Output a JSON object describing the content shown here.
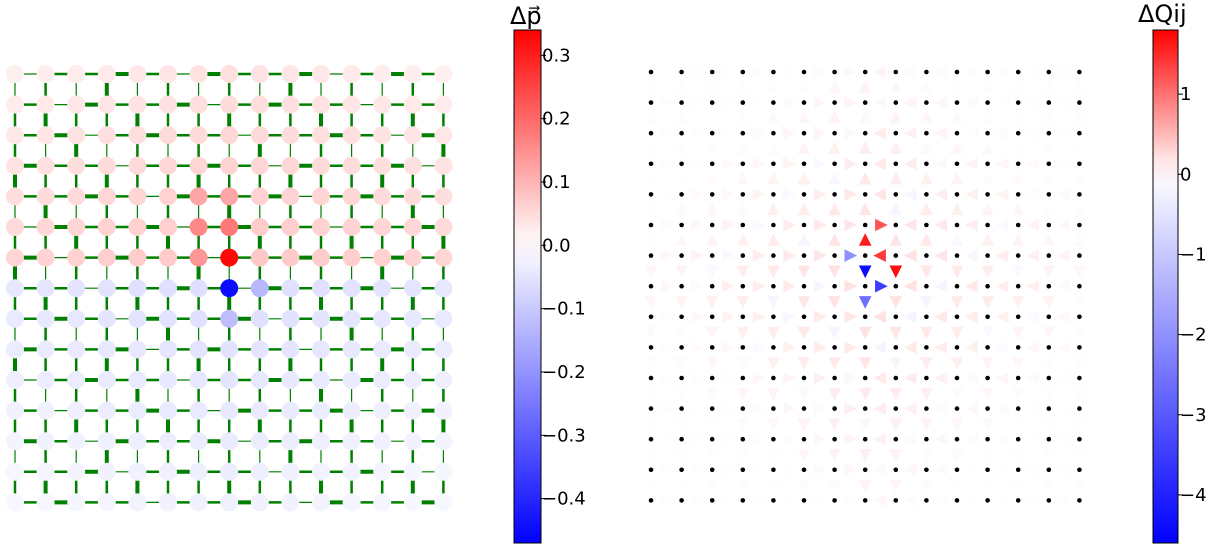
{
  "chart_data": [
    {
      "type": "heatmap",
      "description_kind": "network-grid",
      "grid_size": [
        15,
        15
      ],
      "node_values": {
        "default_above_center": 0.05,
        "default_below_center": -0.04,
        "highlights": [
          {
            "row": 6,
            "col": 7,
            "value": 0.33
          },
          {
            "row": 7,
            "col": 7,
            "value": -0.45
          },
          {
            "row": 5,
            "col": 6,
            "value": 0.16
          },
          {
            "row": 5,
            "col": 7,
            "value": 0.18
          },
          {
            "row": 6,
            "col": 6,
            "value": 0.14
          },
          {
            "row": 4,
            "col": 6,
            "value": 0.12
          },
          {
            "row": 4,
            "col": 7,
            "value": 0.12
          },
          {
            "row": 7,
            "col": 8,
            "value": -0.13
          },
          {
            "row": 8,
            "col": 7,
            "value": -0.12
          }
        ]
      },
      "edge_color": "#008000",
      "colorbar": {
        "label": "Δp⃗",
        "ticks": [
          "0.3",
          "0.2",
          "0.1",
          "0.0",
          "−0.1",
          "−0.2",
          "−0.3",
          "−0.4"
        ],
        "tick_values": [
          0.3,
          0.2,
          0.1,
          0.0,
          -0.1,
          -0.2,
          -0.3,
          -0.4
        ],
        "range": [
          -0.47,
          0.34
        ],
        "colormap": "bwr"
      }
    },
    {
      "type": "heatmap",
      "description_kind": "edge-flow-grid",
      "grid_size": [
        15,
        15
      ],
      "edge_values": {
        "default": 0.08,
        "highlights": [
          {
            "from": [
              6,
              7
            ],
            "to": [
              5,
              7
            ],
            "value": 1.6
          },
          {
            "from": [
              6,
              8
            ],
            "to": [
              6,
              7
            ],
            "value": 1.4
          },
          {
            "from": [
              5,
              7
            ],
            "to": [
              5,
              8
            ],
            "value": 1.2
          },
          {
            "from": [
              6,
              8
            ],
            "to": [
              7,
              8
            ],
            "value": 1.7
          },
          {
            "from": [
              6,
              7
            ],
            "to": [
              7,
              7
            ],
            "value": -4.4
          },
          {
            "from": [
              7,
              7
            ],
            "to": [
              7,
              8
            ],
            "value": -3.5
          },
          {
            "from": [
              7,
              7
            ],
            "to": [
              8,
              7
            ],
            "value": -2.6
          },
          {
            "from": [
              6,
              6
            ],
            "to": [
              6,
              7
            ],
            "value": -2.0
          }
        ]
      },
      "node_color": "#000000",
      "colorbar": {
        "label": "ΔQij",
        "ticks": [
          "1",
          "0",
          "−1",
          "−2",
          "−3",
          "−4"
        ],
        "tick_values": [
          1,
          0,
          -1,
          -2,
          -3,
          -4
        ],
        "range": [
          -4.6,
          1.8
        ],
        "colormap": "bwr"
      }
    }
  ]
}
